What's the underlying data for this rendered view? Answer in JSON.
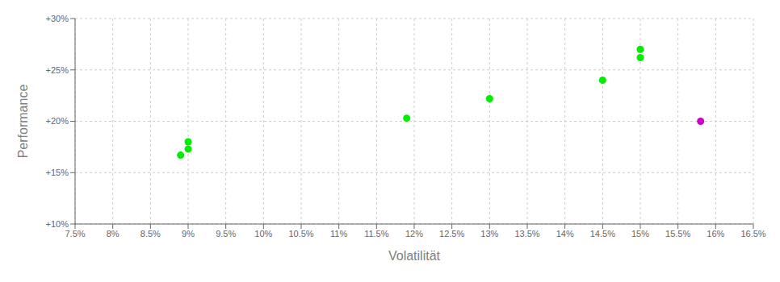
{
  "chart_data": {
    "type": "scatter",
    "xlabel": "Volatilität",
    "ylabel": "Performance",
    "series": [
      {
        "color": "#00ee00",
        "values": [
          [
            0.09,
            0.18
          ],
          [
            0.09,
            0.173
          ],
          [
            0.089,
            0.167
          ],
          [
            0.119,
            0.203
          ],
          [
            0.13,
            0.222
          ],
          [
            0.145,
            0.24
          ],
          [
            0.15,
            0.27
          ],
          [
            0.15,
            0.262
          ]
        ]
      },
      {
        "color": "#cc00cc",
        "values": [
          [
            0.158,
            0.2
          ]
        ]
      }
    ],
    "xlim": [
      0.075,
      0.165
    ],
    "ylim": [
      0.1,
      0.3
    ],
    "xticks": [
      {
        "value": 0.075,
        "label": "7.5%"
      },
      {
        "value": 0.08,
        "label": "8%"
      },
      {
        "value": 0.085,
        "label": "8.5%"
      },
      {
        "value": 0.09,
        "label": "9%"
      },
      {
        "value": 0.095,
        "label": "9.5%"
      },
      {
        "value": 0.1,
        "label": "10%"
      },
      {
        "value": 0.105,
        "label": "10.5%"
      },
      {
        "value": 0.11,
        "label": "11%"
      },
      {
        "value": 0.115,
        "label": "11.5%"
      },
      {
        "value": 0.12,
        "label": "12%"
      },
      {
        "value": 0.125,
        "label": "12.5%"
      },
      {
        "value": 0.13,
        "label": "13%"
      },
      {
        "value": 0.135,
        "label": "13.5%"
      },
      {
        "value": 0.14,
        "label": "14%"
      },
      {
        "value": 0.145,
        "label": "14.5%"
      },
      {
        "value": 0.15,
        "label": "15%"
      },
      {
        "value": 0.155,
        "label": "15.5%"
      },
      {
        "value": 0.16,
        "label": "16%"
      },
      {
        "value": 0.165,
        "label": "16.5%"
      }
    ],
    "yticks": [
      {
        "value": 0.1,
        "label": "+10%"
      },
      {
        "value": 0.15,
        "label": "+15%"
      },
      {
        "value": 0.2,
        "label": "+20%"
      },
      {
        "value": 0.25,
        "label": "+25%"
      },
      {
        "value": 0.3,
        "label": "+30%"
      }
    ],
    "grid": true
  }
}
